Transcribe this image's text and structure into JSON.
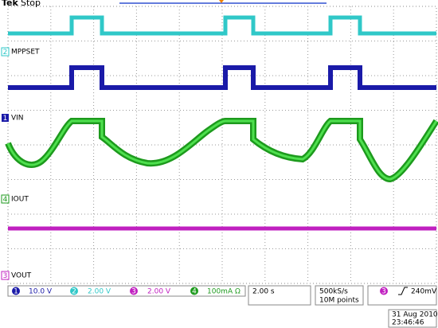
{
  "header": {
    "brand": "Tek",
    "status": "Stop"
  },
  "channels": [
    {
      "number": "2",
      "label": "MPPSET"
    },
    {
      "number": "1",
      "label": "VIN"
    },
    {
      "number": "4",
      "label": "IOUT"
    },
    {
      "number": "3",
      "label": "VOUT"
    }
  ],
  "status_bar": {
    "channels": [
      {
        "number": "1",
        "scale": "10.0 V"
      },
      {
        "number": "2",
        "scale": "2.00 V"
      },
      {
        "number": "3",
        "scale": "2.00 V"
      },
      {
        "number": "4",
        "scale": "100mA Ω"
      }
    ],
    "timebase": "2.00 s",
    "sample_rate": "500kS/s",
    "record_length": "10M points",
    "trigger": {
      "channel": "3",
      "level": "240mV"
    }
  },
  "timestamp": {
    "date": "31 Aug 2010",
    "time": "23:46:46"
  }
}
